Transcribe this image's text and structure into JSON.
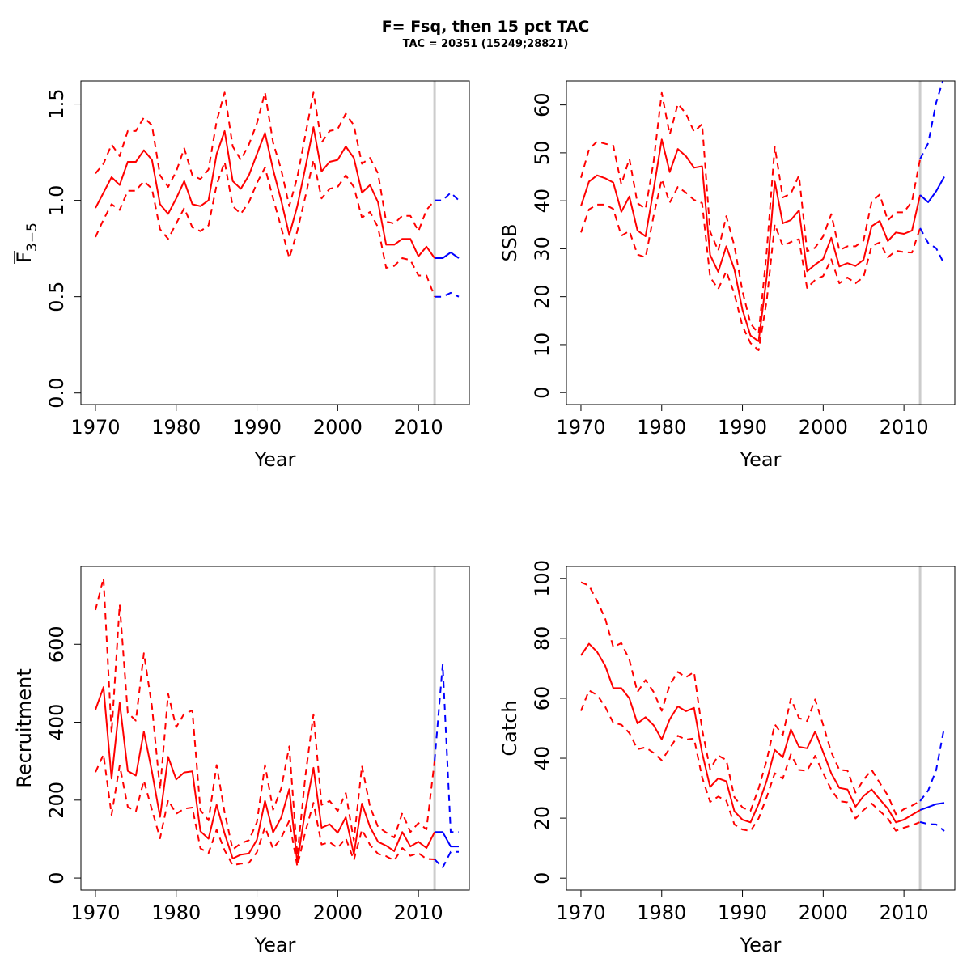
{
  "title": "F= Fsq, then 15 pct TAC",
  "subtitle": "TAC = 20351 (15249;28821)",
  "colors": {
    "history": "#ff0000",
    "forecast": "#0000ff",
    "divider": "#cccccc",
    "axis": "#000000"
  },
  "chart_data": [
    {
      "type": "line",
      "id": "fbar",
      "ylabel": "F",
      "ylabel_sub": "3−5",
      "ylabel_overbar": true,
      "xlabel": "Year",
      "xlim": [
        1968.2,
        2016.3
      ],
      "ylim": [
        -0.06,
        1.62
      ],
      "xticks": [
        1970,
        1980,
        1990,
        2000,
        2010
      ],
      "yticks": [
        0.0,
        0.5,
        1.0,
        1.5
      ],
      "ytick_labels": [
        "0.0",
        "0.5",
        "1.0",
        "1.5"
      ],
      "divider_year": 2012,
      "history": {
        "x": [
          1970,
          1971,
          1972,
          1973,
          1974,
          1975,
          1976,
          1977,
          1978,
          1979,
          1980,
          1981,
          1982,
          1983,
          1984,
          1985,
          1986,
          1987,
          1988,
          1989,
          1990,
          1991,
          1992,
          1993,
          1994,
          1995,
          1996,
          1997,
          1998,
          1999,
          2000,
          2001,
          2002,
          2003,
          2004,
          2005,
          2006,
          2007,
          2008,
          2009,
          2010,
          2011,
          2012
        ],
        "mean": [
          0.96,
          1.04,
          1.12,
          1.08,
          1.2,
          1.2,
          1.26,
          1.21,
          0.98,
          0.93,
          1.01,
          1.1,
          0.98,
          0.97,
          1.0,
          1.24,
          1.36,
          1.1,
          1.06,
          1.13,
          1.24,
          1.35,
          1.16,
          1.0,
          0.82,
          0.97,
          1.17,
          1.38,
          1.15,
          1.2,
          1.21,
          1.28,
          1.22,
          1.04,
          1.08,
          0.99,
          0.77,
          0.77,
          0.8,
          0.8,
          0.71,
          0.76,
          0.7
        ],
        "upper": [
          1.14,
          1.19,
          1.29,
          1.23,
          1.36,
          1.36,
          1.43,
          1.39,
          1.13,
          1.07,
          1.15,
          1.27,
          1.13,
          1.11,
          1.16,
          1.41,
          1.56,
          1.28,
          1.21,
          1.29,
          1.4,
          1.56,
          1.3,
          1.16,
          0.97,
          1.12,
          1.34,
          1.56,
          1.3,
          1.36,
          1.37,
          1.45,
          1.39,
          1.19,
          1.22,
          1.14,
          0.89,
          0.88,
          0.92,
          0.92,
          0.84,
          0.95,
          1.0
        ],
        "lower": [
          0.81,
          0.9,
          0.98,
          0.95,
          1.05,
          1.05,
          1.1,
          1.06,
          0.85,
          0.8,
          0.88,
          0.96,
          0.86,
          0.84,
          0.87,
          1.08,
          1.2,
          0.97,
          0.93,
          0.99,
          1.09,
          1.17,
          1.01,
          0.86,
          0.7,
          0.84,
          1.02,
          1.21,
          1.01,
          1.06,
          1.07,
          1.13,
          1.07,
          0.91,
          0.94,
          0.86,
          0.65,
          0.66,
          0.7,
          0.69,
          0.61,
          0.61,
          0.5
        ]
      },
      "forecast": {
        "x": [
          2012,
          2013,
          2014,
          2015
        ],
        "mean": [
          0.7,
          0.7,
          0.73,
          0.7
        ],
        "upper": [
          1.0,
          1.0,
          1.04,
          1.0
        ],
        "lower": [
          0.5,
          0.5,
          0.52,
          0.5
        ]
      }
    },
    {
      "type": "line",
      "id": "ssb",
      "ylabel": "SSB",
      "xlabel": "Year",
      "xlim": [
        1968.2,
        2016.3
      ],
      "ylim": [
        -2.5,
        65
      ],
      "xticks": [
        1970,
        1980,
        1990,
        2000,
        2010
      ],
      "yticks": [
        0,
        10,
        20,
        30,
        40,
        50,
        60
      ],
      "ytick_labels": [
        "0",
        "10",
        "20",
        "30",
        "40",
        "50",
        "60"
      ],
      "divider_year": 2012,
      "history": {
        "x": [
          1970,
          1971,
          1972,
          1973,
          1974,
          1975,
          1976,
          1977,
          1978,
          1979,
          1980,
          1981,
          1982,
          1983,
          1984,
          1985,
          1986,
          1987,
          1988,
          1989,
          1990,
          1991,
          1992,
          1993,
          1994,
          1995,
          1996,
          1997,
          1998,
          1999,
          2000,
          2001,
          2002,
          2003,
          2004,
          2005,
          2006,
          2007,
          2008,
          2009,
          2010,
          2011,
          2012
        ],
        "mean": [
          38.9,
          44.0,
          45.3,
          44.7,
          43.8,
          37.7,
          40.9,
          33.8,
          32.6,
          42.4,
          52.8,
          46.0,
          50.8,
          49.3,
          46.9,
          47.2,
          28.7,
          25.2,
          30.5,
          25.7,
          17.3,
          11.9,
          10.7,
          24.1,
          44.0,
          35.3,
          36.0,
          38.0,
          25.3,
          26.7,
          27.9,
          32.3,
          26.3,
          27.0,
          26.4,
          27.7,
          34.7,
          35.8,
          31.6,
          33.4,
          33.1,
          33.8,
          41.2
        ],
        "upper": [
          44.8,
          50.7,
          52.4,
          51.9,
          51.5,
          43.4,
          48.8,
          39.5,
          38.3,
          48.2,
          62.5,
          53.8,
          60.2,
          58.2,
          54.4,
          56.0,
          33.6,
          29.6,
          36.8,
          30.6,
          21.2,
          14.4,
          12.3,
          29.4,
          51.3,
          40.7,
          41.5,
          45.3,
          29.5,
          30.2,
          32.6,
          37.2,
          29.7,
          30.5,
          30.5,
          31.7,
          39.8,
          41.3,
          35.9,
          37.6,
          37.6,
          39.9,
          48.7
        ],
        "lower": [
          33.4,
          38.2,
          39.2,
          39.2,
          38.3,
          32.7,
          33.7,
          28.8,
          28.2,
          36.9,
          44.5,
          39.6,
          42.9,
          41.7,
          40.2,
          39.5,
          24.1,
          21.6,
          25.3,
          20.6,
          13.9,
          10.3,
          8.8,
          19.1,
          35.1,
          30.6,
          31.4,
          32.0,
          21.8,
          23.5,
          24.3,
          27.8,
          22.8,
          24.0,
          22.8,
          24.1,
          30.6,
          31.3,
          28.2,
          29.6,
          29.3,
          29.2,
          34.3
        ]
      },
      "forecast": {
        "x": [
          2012,
          2013,
          2014,
          2015
        ],
        "mean": [
          41.2,
          39.7,
          42.0,
          45.0
        ],
        "upper": [
          48.7,
          52.0,
          60.5,
          66.0
        ],
        "lower": [
          34.3,
          31.2,
          30.1,
          26.8
        ]
      }
    },
    {
      "type": "line",
      "id": "recruitment",
      "ylabel": "Recruitment",
      "xlabel": "Year",
      "xlim": [
        1968.2,
        2016.3
      ],
      "ylim": [
        -31,
        800
      ],
      "xticks": [
        1970,
        1980,
        1990,
        2000,
        2010
      ],
      "yticks": [
        0,
        200,
        400,
        600
      ],
      "ytick_labels": [
        "0",
        "200",
        "400",
        "600"
      ],
      "divider_year": 2012,
      "history": {
        "x": [
          1970,
          1971,
          1972,
          1973,
          1974,
          1975,
          1976,
          1977,
          1978,
          1979,
          1980,
          1981,
          1982,
          1983,
          1984,
          1985,
          1986,
          1987,
          1988,
          1989,
          1990,
          1991,
          1992,
          1993,
          1994,
          1995,
          1996,
          1997,
          1998,
          1999,
          2000,
          2001,
          2002,
          2003,
          2004,
          2005,
          2006,
          2007,
          2008,
          2009,
          2010,
          2011,
          2012
        ],
        "mean": [
          432,
          490,
          255,
          450,
          275,
          263,
          376,
          273,
          157,
          311,
          253,
          271,
          274,
          120,
          101,
          188,
          114,
          50,
          60,
          63,
          98,
          198,
          117,
          155,
          228,
          40,
          175,
          283,
          129,
          138,
          116,
          156,
          61,
          191,
          131,
          93,
          83,
          69,
          118,
          81,
          93,
          77,
          118
        ],
        "upper": [
          688,
          770,
          372,
          702,
          424,
          404,
          577,
          441,
          227,
          473,
          387,
          422,
          430,
          174,
          148,
          290,
          168,
          73,
          89,
          97,
          143,
          290,
          175,
          230,
          338,
          57,
          262,
          420,
          188,
          198,
          172,
          218,
          96,
          288,
          183,
          131,
          117,
          104,
          167,
          118,
          141,
          125,
          301
        ],
        "lower": [
          272,
          317,
          162,
          289,
          183,
          171,
          250,
          175,
          102,
          200,
          165,
          178,
          181,
          76,
          64,
          124,
          71,
          33,
          37,
          39,
          66,
          131,
          75,
          103,
          147,
          30,
          119,
          193,
          86,
          92,
          77,
          102,
          46,
          124,
          85,
          62,
          56,
          45,
          77,
          57,
          64,
          49,
          48
        ]
      },
      "forecast": {
        "x": [
          2012,
          2013,
          2014,
          2015
        ],
        "mean": [
          118,
          118,
          81,
          81
        ],
        "upper": [
          301,
          548,
          118,
          118
        ],
        "lower": [
          48,
          27,
          67,
          67
        ]
      }
    },
    {
      "type": "line",
      "id": "catch",
      "ylabel": "Catch",
      "xlabel": "Year",
      "xlim": [
        1968.2,
        2016.3
      ],
      "ylim": [
        -4,
        104
      ],
      "xticks": [
        1970,
        1980,
        1990,
        2000,
        2010
      ],
      "yticks": [
        0,
        20,
        40,
        60,
        80,
        100
      ],
      "ytick_labels": [
        "0",
        "20",
        "40",
        "60",
        "80",
        "100"
      ],
      "divider_year": 2012,
      "history": {
        "x": [
          1970,
          1971,
          1972,
          1973,
          1974,
          1975,
          1976,
          1977,
          1978,
          1979,
          1980,
          1981,
          1982,
          1983,
          1984,
          1985,
          1986,
          1987,
          1988,
          1989,
          1990,
          1991,
          1992,
          1993,
          1994,
          1995,
          1996,
          1997,
          1998,
          1999,
          2000,
          2001,
          2002,
          2003,
          2004,
          2005,
          2006,
          2007,
          2008,
          2009,
          2010,
          2011,
          2012
        ],
        "mean": [
          74.3,
          78.2,
          75.5,
          70.9,
          63.4,
          63.4,
          60.0,
          51.6,
          53.7,
          51.0,
          46.3,
          53.0,
          57.3,
          55.7,
          56.8,
          41.8,
          30.4,
          33.3,
          32.3,
          22.3,
          19.5,
          18.6,
          24.7,
          32.5,
          42.8,
          40.3,
          49.6,
          43.8,
          43.3,
          48.9,
          42.0,
          35.0,
          30.1,
          29.6,
          23.8,
          27.4,
          29.6,
          26.3,
          23.2,
          18.6,
          19.5,
          21.1,
          22.7
        ],
        "upper": [
          98.7,
          97.6,
          92.5,
          86.6,
          77.1,
          78.4,
          72.9,
          62.1,
          66.1,
          62.1,
          55.8,
          64.5,
          68.8,
          67.0,
          68.8,
          49.6,
          36.3,
          40.9,
          39.4,
          27.0,
          23.6,
          22.4,
          29.9,
          39.3,
          51.3,
          47.7,
          59.9,
          53.4,
          52.4,
          59.6,
          51.1,
          42.0,
          36.1,
          35.9,
          28.5,
          32.8,
          36.1,
          31.8,
          27.6,
          21.3,
          23.0,
          24.2,
          25.7
        ],
        "lower": [
          55.8,
          62.6,
          61.1,
          57.2,
          51.8,
          51.2,
          48.4,
          43.0,
          43.6,
          41.8,
          39.3,
          43.3,
          47.5,
          46.2,
          46.6,
          33.6,
          25.4,
          27.2,
          25.8,
          17.9,
          16.2,
          15.7,
          19.9,
          27.0,
          35.0,
          33.2,
          41.3,
          36.1,
          35.8,
          40.8,
          35.0,
          29.5,
          25.7,
          25.3,
          19.9,
          22.7,
          24.9,
          22.4,
          19.9,
          15.8,
          16.8,
          17.6,
          18.7
        ]
      },
      "forecast": {
        "x": [
          2012,
          2013,
          2014,
          2015
        ],
        "mean": [
          22.7,
          23.7,
          24.7,
          25.1
        ],
        "upper": [
          25.7,
          29.2,
          36.1,
          50.3
        ],
        "lower": [
          18.7,
          18.0,
          17.9,
          15.7
        ]
      }
    }
  ]
}
